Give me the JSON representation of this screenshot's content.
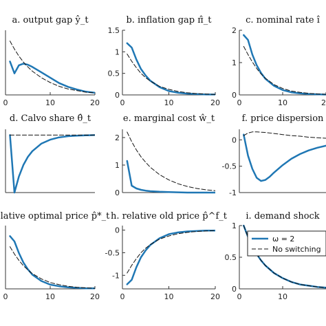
{
  "figure": {
    "colors": {
      "blue": "#1f77b4",
      "black": "#111111",
      "axis": "#333333"
    },
    "legend": {
      "entries": [
        "ω = 2",
        "No switching"
      ],
      "placement": "top-right of panel i"
    }
  },
  "chart_data": [
    {
      "id": "a",
      "type": "line",
      "title": "a. output gap ŷ_t",
      "xlim": [
        0,
        20
      ],
      "ylim": [
        0,
        1.2
      ],
      "xticks": [
        0,
        10,
        20
      ],
      "xtick_labels": [
        "0",
        "10",
        "20"
      ],
      "yticks": [],
      "ytick_labels": [],
      "series": [
        {
          "style": "solid-blue",
          "x": [
            1,
            2,
            3,
            4,
            5,
            6,
            8,
            10,
            12,
            14,
            16,
            18,
            20
          ],
          "y": [
            0.62,
            0.4,
            0.55,
            0.58,
            0.56,
            0.52,
            0.42,
            0.32,
            0.22,
            0.15,
            0.1,
            0.06,
            0.04
          ]
        },
        {
          "style": "dashed-black",
          "x": [
            1,
            2,
            3,
            4,
            5,
            6,
            8,
            10,
            12,
            14,
            16,
            18,
            20
          ],
          "y": [
            1.0,
            0.85,
            0.72,
            0.61,
            0.52,
            0.44,
            0.32,
            0.23,
            0.16,
            0.11,
            0.08,
            0.05,
            0.04
          ]
        }
      ]
    },
    {
      "id": "b",
      "type": "line",
      "title": "b. inflation gap π̂_t",
      "xlim": [
        0,
        20
      ],
      "ylim": [
        0,
        1.5
      ],
      "xticks": [
        0,
        10,
        20
      ],
      "xtick_labels": [
        "0",
        "10",
        "20"
      ],
      "yticks": [
        0,
        0.5,
        1,
        1.5
      ],
      "ytick_labels": [
        "0",
        "0.5",
        "1",
        "1.5"
      ],
      "series": [
        {
          "style": "solid-blue",
          "x": [
            1,
            2,
            3,
            4,
            5,
            6,
            8,
            10,
            12,
            14,
            16,
            18,
            20
          ],
          "y": [
            1.2,
            1.1,
            0.82,
            0.6,
            0.45,
            0.33,
            0.18,
            0.09,
            0.05,
            0.03,
            0.02,
            0.01,
            0.01
          ]
        },
        {
          "style": "dashed-black",
          "x": [
            1,
            2,
            3,
            4,
            5,
            6,
            8,
            10,
            12,
            14,
            16,
            18,
            20
          ],
          "y": [
            0.95,
            0.78,
            0.63,
            0.5,
            0.4,
            0.32,
            0.2,
            0.13,
            0.08,
            0.05,
            0.03,
            0.02,
            0.01
          ]
        }
      ]
    },
    {
      "id": "c",
      "type": "line",
      "title": "c. nominal rate î",
      "xlim": [
        0,
        20
      ],
      "ylim": [
        0,
        2
      ],
      "xticks": [
        0,
        10,
        20
      ],
      "xtick_labels": [
        "0",
        "10",
        "20"
      ],
      "yticks": [
        0,
        1,
        2
      ],
      "ytick_labels": [
        "0",
        "1",
        "2"
      ],
      "series": [
        {
          "style": "solid-blue",
          "x": [
            1,
            2,
            3,
            4,
            5,
            6,
            8,
            10,
            12,
            14,
            16,
            18,
            20
          ],
          "y": [
            1.85,
            1.7,
            1.25,
            0.92,
            0.68,
            0.5,
            0.28,
            0.15,
            0.08,
            0.05,
            0.03,
            0.02,
            0.01
          ]
        },
        {
          "style": "dashed-black",
          "x": [
            1,
            2,
            3,
            4,
            5,
            6,
            8,
            10,
            12,
            14,
            16,
            18,
            20
          ],
          "y": [
            1.5,
            1.25,
            1.02,
            0.82,
            0.65,
            0.52,
            0.32,
            0.2,
            0.12,
            0.08,
            0.05,
            0.03,
            0.02
          ]
        }
      ]
    },
    {
      "id": "d",
      "type": "line",
      "title": "d. Calvo share θ̂_t",
      "xlim": [
        0,
        20
      ],
      "ylim": [
        -1,
        0.1
      ],
      "xticks": [],
      "xtick_labels": [],
      "yticks": [],
      "ytick_labels": [],
      "series": [
        {
          "style": "solid-blue",
          "x": [
            1,
            2,
            3,
            4,
            5,
            6,
            8,
            10,
            12,
            14,
            16,
            18,
            20
          ],
          "y": [
            0.0,
            -1.0,
            -0.72,
            -0.52,
            -0.38,
            -0.28,
            -0.15,
            -0.08,
            -0.04,
            -0.02,
            -0.01,
            -0.005,
            0.0
          ]
        },
        {
          "style": "dashed-black",
          "x": [
            1,
            20
          ],
          "y": [
            0.0,
            0.0
          ]
        }
      ]
    },
    {
      "id": "e",
      "type": "line",
      "title": "e. marginal cost ŵ_t",
      "xlim": [
        0,
        20
      ],
      "ylim": [
        0,
        2.3
      ],
      "xticks": [],
      "xtick_labels": [],
      "yticks": [
        0,
        1,
        2
      ],
      "ytick_labels": [
        "0",
        "1",
        "2"
      ],
      "series": [
        {
          "style": "solid-blue",
          "x": [
            1,
            2,
            3,
            4,
            5,
            6,
            8,
            10,
            12,
            14,
            16,
            18,
            20
          ],
          "y": [
            1.15,
            0.25,
            0.15,
            0.1,
            0.07,
            0.05,
            0.03,
            0.02,
            0.01,
            0.0,
            0.0,
            0.0,
            0.0
          ]
        },
        {
          "style": "dashed-black",
          "x": [
            1,
            2,
            3,
            4,
            5,
            6,
            8,
            10,
            12,
            14,
            16,
            18,
            20
          ],
          "y": [
            2.2,
            1.85,
            1.55,
            1.3,
            1.1,
            0.92,
            0.65,
            0.46,
            0.32,
            0.22,
            0.15,
            0.1,
            0.07
          ]
        }
      ]
    },
    {
      "id": "f",
      "type": "line",
      "title": "f. price dispersion",
      "xlim": [
        0,
        20
      ],
      "ylim": [
        -1,
        0.2
      ],
      "xticks": [],
      "xtick_labels": [],
      "yticks": [
        -1,
        -0.5,
        0
      ],
      "ytick_labels": [
        "-1",
        "-0.5",
        "0"
      ],
      "series": [
        {
          "style": "solid-blue",
          "x": [
            1,
            2,
            3,
            4,
            5,
            6,
            7,
            8,
            10,
            12,
            14,
            16,
            18,
            20
          ],
          "y": [
            0.1,
            -0.3,
            -0.55,
            -0.72,
            -0.78,
            -0.76,
            -0.7,
            -0.62,
            -0.48,
            -0.36,
            -0.27,
            -0.2,
            -0.15,
            -0.11
          ]
        },
        {
          "style": "dashed-black",
          "x": [
            1,
            2,
            3,
            4,
            6,
            8,
            10,
            12,
            14,
            16,
            18,
            20
          ],
          "y": [
            0.08,
            0.13,
            0.15,
            0.15,
            0.14,
            0.12,
            0.1,
            0.08,
            0.07,
            0.05,
            0.04,
            0.03
          ]
        }
      ]
    },
    {
      "id": "g",
      "type": "line",
      "title": "relative optimal price p̂*_t",
      "xlim": [
        0,
        20
      ],
      "ylim": [
        0,
        1.2
      ],
      "xticks": [
        0,
        10,
        20
      ],
      "xtick_labels": [
        "0",
        "10",
        "20"
      ],
      "yticks": [],
      "ytick_labels": [],
      "series": [
        {
          "style": "solid-blue",
          "x": [
            1,
            2,
            3,
            4,
            5,
            6,
            8,
            10,
            12,
            14,
            16,
            18,
            20
          ],
          "y": [
            1.0,
            0.9,
            0.68,
            0.5,
            0.37,
            0.27,
            0.15,
            0.08,
            0.05,
            0.03,
            0.02,
            0.01,
            0.01
          ]
        },
        {
          "style": "dashed-black",
          "x": [
            1,
            2,
            3,
            4,
            5,
            6,
            8,
            10,
            12,
            14,
            16,
            18,
            20
          ],
          "y": [
            0.8,
            0.66,
            0.54,
            0.44,
            0.36,
            0.29,
            0.19,
            0.12,
            0.08,
            0.05,
            0.03,
            0.02,
            0.01
          ]
        }
      ]
    },
    {
      "id": "h",
      "type": "line",
      "title": "h. relative old price p̂^f_t",
      "xlim": [
        0,
        20
      ],
      "ylim": [
        -1.3,
        0.1
      ],
      "xticks": [
        0,
        10,
        20
      ],
      "xtick_labels": [
        "0",
        "10",
        "20"
      ],
      "yticks": [
        -1,
        -0.5,
        0
      ],
      "ytick_labels": [
        "-1",
        "-0.5",
        "0"
      ],
      "series": [
        {
          "style": "solid-blue",
          "x": [
            1,
            2,
            3,
            4,
            5,
            6,
            8,
            10,
            12,
            14,
            16,
            18,
            20
          ],
          "y": [
            -1.2,
            -1.1,
            -0.82,
            -0.6,
            -0.45,
            -0.33,
            -0.18,
            -0.09,
            -0.05,
            -0.03,
            -0.02,
            -0.01,
            -0.01
          ]
        },
        {
          "style": "dashed-black",
          "x": [
            1,
            2,
            3,
            4,
            5,
            6,
            8,
            10,
            12,
            14,
            16,
            18,
            20
          ],
          "y": [
            -0.95,
            -0.78,
            -0.63,
            -0.5,
            -0.4,
            -0.32,
            -0.2,
            -0.13,
            -0.08,
            -0.05,
            -0.03,
            -0.02,
            -0.01
          ]
        }
      ]
    },
    {
      "id": "i",
      "type": "line",
      "title": "i. demand shock",
      "xlim": [
        0,
        20
      ],
      "ylim": [
        0,
        1
      ],
      "xticks": [
        0,
        10
      ],
      "xtick_labels": [
        "0",
        "10"
      ],
      "yticks": [
        0,
        0.5,
        1
      ],
      "ytick_labels": [
        "0",
        "0.5",
        "1"
      ],
      "series": [
        {
          "style": "solid-blue",
          "x": [
            1,
            2,
            3,
            4,
            5,
            6,
            8,
            10,
            12,
            14,
            16,
            18,
            20
          ],
          "y": [
            1.0,
            0.82,
            0.67,
            0.55,
            0.45,
            0.37,
            0.25,
            0.17,
            0.11,
            0.07,
            0.05,
            0.03,
            0.02
          ]
        },
        {
          "style": "dashed-black",
          "x": [
            1,
            2,
            3,
            4,
            5,
            6,
            8,
            10,
            12,
            14,
            16,
            18,
            20
          ],
          "y": [
            1.0,
            0.82,
            0.67,
            0.55,
            0.45,
            0.37,
            0.25,
            0.17,
            0.11,
            0.07,
            0.05,
            0.03,
            0.02
          ]
        }
      ]
    }
  ]
}
